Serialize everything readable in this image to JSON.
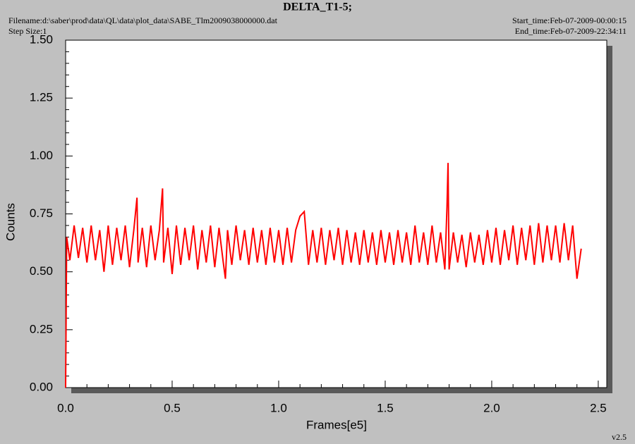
{
  "chart_data": {
    "type": "line",
    "title": "DELTA_T1-5;",
    "filename": "Filename:d:\\saber\\prod\\data\\QL\\data\\plot_data\\SABE_Tlm2009038000000.dat",
    "step_size": "Step Size:1",
    "start_time": "Start_time:Feb-07-2009-00:00:15",
    "end_time": "End_time:Feb-07-2009-22:34:11",
    "version": "v2.5",
    "xlabel": "Frames[e5]",
    "ylabel": "Counts",
    "xlim": [
      0,
      2.54
    ],
    "ylim": [
      0,
      1.5
    ],
    "xticks": [
      {
        "value": 0,
        "label": "0.0"
      },
      {
        "value": 0.5,
        "label": "0.5"
      },
      {
        "value": 1,
        "label": "1.0"
      },
      {
        "value": 1.5,
        "label": "1.5"
      },
      {
        "value": 2,
        "label": "2.0"
      },
      {
        "value": 2.5,
        "label": "2.5"
      }
    ],
    "yticks": [
      {
        "value": 0,
        "label": "0.00"
      },
      {
        "value": 0.25,
        "label": "0.25"
      },
      {
        "value": 0.5,
        "label": "0.50"
      },
      {
        "value": 0.75,
        "label": "0.75"
      },
      {
        "value": 1,
        "label": "1.00"
      },
      {
        "value": 1.25,
        "label": "1.25"
      },
      {
        "value": 1.5,
        "label": "1.50"
      }
    ],
    "xminorticks": [
      0.1,
      0.2,
      0.3,
      0.4,
      0.6,
      0.7,
      0.8,
      0.9,
      1.1,
      1.2,
      1.3,
      1.4,
      1.6,
      1.7,
      1.8,
      1.9,
      2.1,
      2.2,
      2.3,
      2.4
    ],
    "yminorticks": [
      0.05,
      0.1,
      0.15,
      0.2,
      0.3,
      0.35,
      0.4,
      0.45,
      0.55,
      0.6,
      0.65,
      0.7,
      0.8,
      0.85,
      0.9,
      0.95,
      1.05,
      1.1,
      1.15,
      1.2,
      1.3,
      1.35,
      1.4,
      1.45
    ],
    "series": [
      {
        "color": "#ff0000",
        "x": [
          0,
          0.005,
          0.02,
          0.04,
          0.06,
          0.08,
          0.1,
          0.12,
          0.14,
          0.16,
          0.18,
          0.2,
          0.22,
          0.24,
          0.26,
          0.28,
          0.3,
          0.32,
          0.335,
          0.34,
          0.36,
          0.38,
          0.4,
          0.42,
          0.44,
          0.455,
          0.46,
          0.48,
          0.5,
          0.52,
          0.54,
          0.56,
          0.58,
          0.6,
          0.62,
          0.64,
          0.66,
          0.68,
          0.7,
          0.72,
          0.74,
          0.75,
          0.76,
          0.78,
          0.8,
          0.82,
          0.84,
          0.86,
          0.88,
          0.9,
          0.92,
          0.94,
          0.96,
          0.98,
          1.0,
          1.02,
          1.04,
          1.06,
          1.08,
          1.1,
          1.12,
          1.14,
          1.16,
          1.18,
          1.2,
          1.22,
          1.24,
          1.26,
          1.28,
          1.3,
          1.32,
          1.34,
          1.36,
          1.38,
          1.4,
          1.42,
          1.44,
          1.46,
          1.48,
          1.5,
          1.52,
          1.54,
          1.56,
          1.58,
          1.6,
          1.62,
          1.64,
          1.66,
          1.68,
          1.7,
          1.72,
          1.74,
          1.76,
          1.78,
          1.79,
          1.795,
          1.8,
          1.82,
          1.84,
          1.86,
          1.88,
          1.9,
          1.92,
          1.94,
          1.96,
          1.98,
          2.0,
          2.02,
          2.04,
          2.06,
          2.08,
          2.1,
          2.12,
          2.14,
          2.16,
          2.18,
          2.2,
          2.22,
          2.24,
          2.26,
          2.28,
          2.3,
          2.32,
          2.34,
          2.36,
          2.38,
          2.4,
          2.42
        ],
        "values": [
          0,
          0.65,
          0.55,
          0.7,
          0.56,
          0.69,
          0.54,
          0.7,
          0.55,
          0.68,
          0.5,
          0.7,
          0.53,
          0.69,
          0.55,
          0.7,
          0.52,
          0.68,
          0.82,
          0.54,
          0.69,
          0.52,
          0.7,
          0.55,
          0.68,
          0.86,
          0.54,
          0.69,
          0.49,
          0.7,
          0.53,
          0.69,
          0.55,
          0.7,
          0.51,
          0.68,
          0.54,
          0.7,
          0.52,
          0.69,
          0.54,
          0.47,
          0.68,
          0.53,
          0.7,
          0.55,
          0.68,
          0.53,
          0.69,
          0.54,
          0.68,
          0.53,
          0.69,
          0.54,
          0.68,
          0.53,
          0.69,
          0.54,
          0.68,
          0.74,
          0.76,
          0.53,
          0.68,
          0.54,
          0.69,
          0.53,
          0.68,
          0.55,
          0.69,
          0.53,
          0.68,
          0.54,
          0.67,
          0.53,
          0.68,
          0.54,
          0.67,
          0.53,
          0.68,
          0.54,
          0.67,
          0.53,
          0.68,
          0.54,
          0.67,
          0.53,
          0.7,
          0.54,
          0.67,
          0.53,
          0.7,
          0.54,
          0.67,
          0.51,
          0.78,
          0.97,
          0.51,
          0.67,
          0.54,
          0.66,
          0.52,
          0.67,
          0.54,
          0.66,
          0.53,
          0.68,
          0.54,
          0.69,
          0.53,
          0.68,
          0.55,
          0.7,
          0.53,
          0.69,
          0.55,
          0.7,
          0.53,
          0.71,
          0.54,
          0.7,
          0.55,
          0.7,
          0.54,
          0.71,
          0.55,
          0.7,
          0.47,
          0.6
        ]
      }
    ]
  }
}
